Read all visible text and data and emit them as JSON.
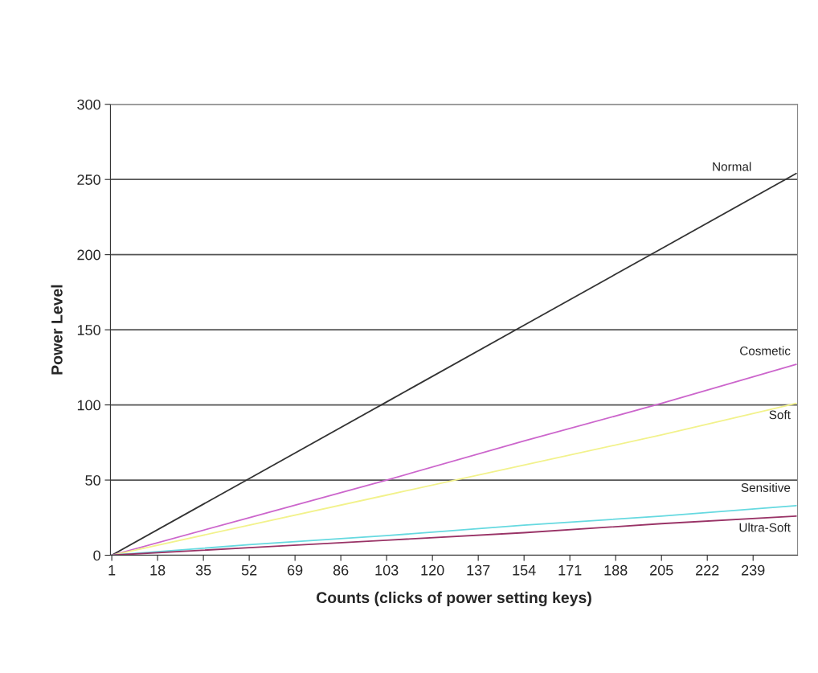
{
  "chart_data": {
    "type": "line",
    "xlabel": "Counts (clicks of power setting keys)",
    "ylabel": "Power Level",
    "x": [
      1,
      52,
      103,
      154,
      205,
      255
    ],
    "series": [
      {
        "name": "Normal",
        "color": "#333333",
        "values": [
          0,
          51,
          102,
          153,
          204,
          254
        ]
      },
      {
        "name": "Cosmetic",
        "color": "#cc66cc",
        "values": [
          0,
          25,
          50,
          76,
          101,
          127
        ]
      },
      {
        "name": "Soft",
        "color": "#f2f28c",
        "values": [
          0,
          20,
          40,
          60,
          80,
          101
        ]
      },
      {
        "name": "Sensitive",
        "color": "#66d9e0",
        "values": [
          0,
          7,
          13,
          20,
          26,
          33
        ]
      },
      {
        "name": "Ultra-Soft",
        "color": "#993366",
        "values": [
          0,
          5,
          10,
          15,
          21,
          26
        ]
      }
    ],
    "xlim": [
      0.5,
      255.5
    ],
    "xticks": [
      1,
      18,
      35,
      52,
      69,
      86,
      103,
      120,
      137,
      154,
      171,
      188,
      205,
      222,
      239
    ],
    "ylim": [
      0,
      300
    ],
    "yticks": [
      0,
      50,
      100,
      150,
      200,
      250,
      300
    ],
    "grid": "y",
    "legend": false,
    "marker": "none",
    "line_style": "solid"
  }
}
